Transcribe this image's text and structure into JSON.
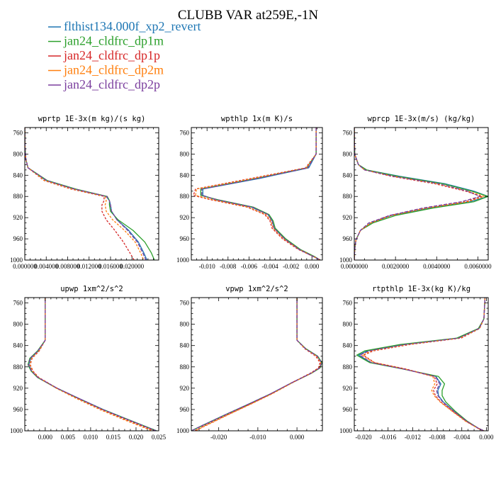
{
  "figure": {
    "title": "CLUBB VAR at259E,-1N"
  },
  "legend": [
    {
      "name": "flthist134.000f_xp2_revert",
      "color": "#1f77b4",
      "dash": "solid"
    },
    {
      "name": "jan24_cldfrc_dp1m",
      "color": "#2ca02c",
      "dash": "solid"
    },
    {
      "name": "jan24_cldfrc_dp1p",
      "color": "#d62728",
      "dash": "solid"
    },
    {
      "name": "jan24_cldfrc_dp2m",
      "color": "#ff7f0e",
      "dash": "solid"
    },
    {
      "name": "jan24_cldfrc_dp2p",
      "color": "#7b3f9e",
      "dash": "solid"
    }
  ],
  "chart_data": [
    {
      "type": "line",
      "title": "wprtp  1E-3x(m kg)/(s kg)",
      "xlim": [
        0,
        0.025
      ],
      "ylim": [
        750,
        1000
      ],
      "y_inverted": true,
      "yticks": [
        760,
        800,
        840,
        880,
        920,
        960,
        1000
      ],
      "xticks": [
        0.0,
        0.004,
        0.008,
        0.012,
        0.016,
        0.02
      ],
      "xtick_labels": [
        "0.000000",
        "0.004000",
        "0.008000",
        "0.012000",
        "0.016000",
        "0.020000"
      ],
      "y": [
        750,
        790,
        810,
        826,
        850,
        866,
        880,
        888,
        896,
        908,
        924,
        944,
        966,
        986,
        1000
      ],
      "series": [
        {
          "name": "flthist134.000f_xp2_revert",
          "x": [
            0,
            5e-05,
            0.0002,
            0.0006,
            0.004,
            0.0092,
            0.0152,
            0.0158,
            0.016,
            0.0162,
            0.0172,
            0.0194,
            0.0212,
            0.0222,
            0.0228
          ]
        },
        {
          "name": "jan24_cldfrc_dp1m",
          "x": [
            0,
            5e-05,
            0.0002,
            0.0006,
            0.0042,
            0.0095,
            0.0154,
            0.0158,
            0.0158,
            0.016,
            0.0174,
            0.0202,
            0.0224,
            0.0236,
            0.0242
          ]
        },
        {
          "name": "jan24_cldfrc_dp1p",
          "x": [
            0,
            5e-05,
            0.0002,
            0.0006,
            0.0036,
            0.0086,
            0.0148,
            0.0148,
            0.0144,
            0.0144,
            0.0152,
            0.0168,
            0.0184,
            0.0196,
            0.0204
          ]
        },
        {
          "name": "jan24_cldfrc_dp2m",
          "x": [
            0,
            5e-05,
            0.0002,
            0.0006,
            0.0037,
            0.0088,
            0.015,
            0.0152,
            0.015,
            0.0152,
            0.0164,
            0.0186,
            0.0206,
            0.0216,
            0.0222
          ]
        },
        {
          "name": "jan24_cldfrc_dp2p",
          "x": [
            0,
            5e-05,
            0.0002,
            0.0006,
            0.0041,
            0.0093,
            0.0153,
            0.0158,
            0.016,
            0.0162,
            0.0172,
            0.0192,
            0.021,
            0.022,
            0.0226
          ]
        }
      ]
    },
    {
      "type": "line",
      "title": "wpthlp  1x(m K)/s",
      "xlim": [
        -0.0115,
        0.001
      ],
      "ylim": [
        750,
        1000
      ],
      "y_inverted": true,
      "yticks": [
        760,
        800,
        840,
        880,
        920,
        960,
        1000
      ],
      "xticks": [
        -0.01,
        -0.008,
        -0.006,
        -0.004,
        -0.002,
        0.0
      ],
      "xtick_labels": [
        "-0.010",
        "-0.008",
        "-0.006",
        "-0.004",
        "-0.002",
        "0.000"
      ],
      "y": [
        750,
        800,
        826,
        846,
        866,
        878,
        886,
        900,
        914,
        926,
        940,
        960,
        980,
        994,
        1000
      ],
      "series": [
        {
          "name": "flthist134.000f_xp2_revert",
          "x": [
            0.0004,
            0.0004,
            -0.0003,
            -0.005,
            -0.0104,
            -0.0104,
            -0.0092,
            -0.0058,
            -0.0042,
            -0.0038,
            -0.0036,
            -0.0026,
            -0.0012,
            0.0002,
            0.0008
          ]
        },
        {
          "name": "jan24_cldfrc_dp1m",
          "x": [
            0.0004,
            0.0004,
            -0.0005,
            -0.0053,
            -0.0106,
            -0.0106,
            -0.009,
            -0.0056,
            -0.0041,
            -0.0037,
            -0.0035,
            -0.0025,
            -0.0011,
            0.0003,
            0.0008
          ]
        },
        {
          "name": "jan24_cldfrc_dp1p",
          "x": [
            0.0004,
            0.0004,
            -0.0006,
            -0.0058,
            -0.0111,
            -0.0113,
            -0.0097,
            -0.0062,
            -0.0045,
            -0.004,
            -0.0038,
            -0.0028,
            -0.0013,
            0.0002,
            0.0008
          ]
        },
        {
          "name": "jan24_cldfrc_dp2m",
          "x": [
            0.0004,
            0.0004,
            -0.0005,
            -0.0056,
            -0.011,
            -0.0111,
            -0.0095,
            -0.0061,
            -0.0044,
            -0.0039,
            -0.0037,
            -0.0027,
            -0.0012,
            0.0002,
            0.0008
          ]
        },
        {
          "name": "jan24_cldfrc_dp2p",
          "x": [
            0.0004,
            0.0004,
            -0.0004,
            -0.0052,
            -0.0105,
            -0.0105,
            -0.0091,
            -0.0057,
            -0.0042,
            -0.0038,
            -0.0036,
            -0.0026,
            -0.0012,
            0.0002,
            0.0008
          ]
        }
      ]
    },
    {
      "type": "line",
      "title": "wprcp  1E-3x(m/s) (kg/kg)",
      "xlim": [
        0,
        0.0065
      ],
      "ylim": [
        750,
        1000
      ],
      "y_inverted": true,
      "yticks": [
        760,
        800,
        840,
        880,
        920,
        960,
        1000
      ],
      "xticks": [
        0.0,
        0.002,
        0.004,
        0.006
      ],
      "xtick_labels": [
        "0.0000000",
        "0.0020000",
        "0.0040000",
        "0.0060000"
      ],
      "y": [
        750,
        800,
        820,
        830,
        842,
        856,
        870,
        880,
        890,
        902,
        916,
        930,
        944,
        962,
        980,
        1000
      ],
      "series": [
        {
          "name": "flthist134.000f_xp2_revert",
          "x": [
            0,
            2e-05,
            0.0002,
            0.0006,
            0.0022,
            0.0044,
            0.0058,
            0.0065,
            0.0056,
            0.0036,
            0.0018,
            0.0008,
            0.0003,
            8e-05,
            2e-05,
            0
          ]
        },
        {
          "name": "jan24_cldfrc_dp1m",
          "x": [
            0,
            2e-05,
            0.0002,
            0.0006,
            0.0021,
            0.0043,
            0.0057,
            0.0065,
            0.0058,
            0.0038,
            0.002,
            0.0009,
            0.0003,
            8e-05,
            2e-05,
            0
          ]
        },
        {
          "name": "jan24_cldfrc_dp1p",
          "x": [
            0,
            2e-05,
            0.0002,
            0.0005,
            0.0018,
            0.0039,
            0.0054,
            0.0062,
            0.0054,
            0.0035,
            0.0017,
            0.0008,
            0.0003,
            8e-05,
            2e-05,
            0
          ]
        },
        {
          "name": "jan24_cldfrc_dp2m",
          "x": [
            0,
            2e-05,
            0.0002,
            0.0005,
            0.0019,
            0.004,
            0.0055,
            0.0063,
            0.0055,
            0.0035,
            0.0018,
            0.0008,
            0.0003,
            8e-05,
            2e-05,
            0
          ]
        },
        {
          "name": "jan24_cldfrc_dp2p",
          "x": [
            0,
            2e-05,
            0.0002,
            0.0005,
            0.0019,
            0.0041,
            0.0055,
            0.0061,
            0.0052,
            0.0033,
            0.0017,
            0.0007,
            0.0003,
            8e-05,
            2e-05,
            0
          ]
        }
      ]
    },
    {
      "type": "line",
      "title": "upwp  1xm^2/s^2",
      "xlim": [
        -0.0045,
        0.025
      ],
      "ylim": [
        750,
        1000
      ],
      "y_inverted": true,
      "yticks": [
        760,
        800,
        840,
        880,
        920,
        960,
        1000
      ],
      "xticks": [
        0.0,
        0.005,
        0.01,
        0.015,
        0.02,
        0.025
      ],
      "xtick_labels": [
        "0.000",
        "0.005",
        "0.010",
        "0.015",
        "0.020",
        "0.025"
      ],
      "y": [
        745,
        830,
        850,
        864,
        876,
        888,
        900,
        920,
        940,
        960,
        980,
        1000
      ],
      "series": [
        {
          "name": "flthist134.000f_xp2_revert",
          "x": [
            0.0,
            0.0,
            -0.0015,
            -0.0032,
            -0.0036,
            -0.003,
            -0.0016,
            0.0026,
            0.0076,
            0.0128,
            0.0186,
            0.0245
          ]
        },
        {
          "name": "jan24_cldfrc_dp1m",
          "x": [
            0.0,
            0.0,
            -0.0017,
            -0.0034,
            -0.0038,
            -0.0031,
            -0.0017,
            0.0025,
            0.0075,
            0.0127,
            0.0186,
            0.0245
          ]
        },
        {
          "name": "jan24_cldfrc_dp1p",
          "x": [
            0.0,
            0.0,
            -0.0013,
            -0.0029,
            -0.0033,
            -0.0027,
            -0.0014,
            0.0026,
            0.0074,
            0.0124,
            0.018,
            0.024
          ]
        },
        {
          "name": "jan24_cldfrc_dp2m",
          "x": [
            0.0,
            0.0,
            -0.0014,
            -0.003,
            -0.0034,
            -0.0028,
            -0.0015,
            0.0024,
            0.007,
            0.012,
            0.0176,
            0.0236
          ]
        },
        {
          "name": "jan24_cldfrc_dp2p",
          "x": [
            0.0,
            0.0,
            -0.0016,
            -0.0033,
            -0.0037,
            -0.003,
            -0.0016,
            0.0026,
            0.0076,
            0.0127,
            0.0185,
            0.0244
          ]
        }
      ]
    },
    {
      "type": "line",
      "title": "vpwp  1xm^2/s^2",
      "xlim": [
        -0.027,
        0.0065
      ],
      "ylim": [
        750,
        1000
      ],
      "y_inverted": true,
      "yticks": [
        760,
        800,
        840,
        880,
        920,
        960,
        1000
      ],
      "xticks": [
        -0.02,
        -0.01,
        0.0
      ],
      "xtick_labels": [
        "-0.020",
        "-0.010",
        "0.000"
      ],
      "y": [
        745,
        830,
        846,
        860,
        872,
        882,
        892,
        910,
        930,
        950,
        970,
        990,
        1000
      ],
      "series": [
        {
          "name": "flthist134.000f_xp2_revert",
          "x": [
            0.0,
            0.0,
            0.0022,
            0.0052,
            0.0063,
            0.0058,
            0.0036,
            -0.0014,
            -0.0066,
            -0.0124,
            -0.0184,
            -0.0242,
            -0.027
          ]
        },
        {
          "name": "jan24_cldfrc_dp1m",
          "x": [
            0.0,
            0.0,
            0.0023,
            0.0053,
            0.0064,
            0.0059,
            0.0037,
            -0.0013,
            -0.0065,
            -0.0123,
            -0.0183,
            -0.0241,
            -0.027
          ]
        },
        {
          "name": "jan24_cldfrc_dp1p",
          "x": [
            0.0,
            0.0,
            0.002,
            0.0048,
            0.0059,
            0.0055,
            0.0034,
            -0.0014,
            -0.0064,
            -0.012,
            -0.0178,
            -0.0235,
            -0.0262
          ]
        },
        {
          "name": "jan24_cldfrc_dp2m",
          "x": [
            0.0,
            0.0,
            0.0021,
            0.005,
            0.0061,
            0.0057,
            0.0036,
            -0.0012,
            -0.0062,
            -0.0118,
            -0.0176,
            -0.0232,
            -0.026
          ]
        },
        {
          "name": "jan24_cldfrc_dp2p",
          "x": [
            0.0,
            0.0,
            0.0022,
            0.0052,
            0.0063,
            0.0058,
            0.0036,
            -0.0014,
            -0.0066,
            -0.0124,
            -0.0184,
            -0.0242,
            -0.027
          ]
        }
      ]
    },
    {
      "type": "line",
      "title": "rtpthlp  1E-3x(kg K)/kg",
      "xlim": [
        -0.0215,
        0.0003
      ],
      "ylim": [
        750,
        1000
      ],
      "y_inverted": true,
      "yticks": [
        760,
        800,
        840,
        880,
        920,
        960,
        1000
      ],
      "xticks": [
        -0.02,
        -0.016,
        -0.012,
        -0.008,
        -0.004,
        0.0
      ],
      "xtick_labels": [
        "-0.020",
        "-0.016",
        "-0.012",
        "-0.008",
        "-0.004",
        "0.000"
      ],
      "y": [
        745,
        790,
        808,
        826,
        838,
        850,
        858,
        872,
        884,
        898,
        912,
        924,
        934,
        946,
        964,
        982,
        996,
        1000
      ],
      "series": [
        {
          "name": "flthist134.000f_xp2_revert",
          "x": [
            -0.0002,
            -0.0004,
            -0.0012,
            -0.0046,
            -0.0135,
            -0.0194,
            -0.0208,
            -0.0188,
            -0.0135,
            -0.0082,
            -0.0074,
            -0.0079,
            -0.0078,
            -0.007,
            -0.0052,
            -0.0032,
            -0.0012,
            -0.0004
          ]
        },
        {
          "name": "jan24_cldfrc_dp1m",
          "x": [
            -0.0002,
            -0.0004,
            -0.0013,
            -0.0048,
            -0.014,
            -0.0198,
            -0.0211,
            -0.019,
            -0.0136,
            -0.0078,
            -0.0068,
            -0.0072,
            -0.0072,
            -0.0066,
            -0.005,
            -0.0031,
            -0.0012,
            -0.0004
          ]
        },
        {
          "name": "jan24_cldfrc_dp1p",
          "x": [
            -0.0002,
            -0.0004,
            -0.0011,
            -0.0041,
            -0.0124,
            -0.0184,
            -0.02,
            -0.0182,
            -0.0131,
            -0.0085,
            -0.008,
            -0.0086,
            -0.0083,
            -0.0074,
            -0.0054,
            -0.0033,
            -0.0012,
            -0.0004
          ]
        },
        {
          "name": "jan24_cldfrc_dp2m",
          "x": [
            -0.0002,
            -0.0004,
            -0.0011,
            -0.0043,
            -0.0127,
            -0.0187,
            -0.0202,
            -0.0183,
            -0.0133,
            -0.0087,
            -0.0084,
            -0.0089,
            -0.0085,
            -0.0075,
            -0.0055,
            -0.0034,
            -0.0013,
            -0.0004
          ]
        },
        {
          "name": "jan24_cldfrc_dp2p",
          "x": [
            -0.0002,
            -0.0004,
            -0.0012,
            -0.0045,
            -0.0132,
            -0.0191,
            -0.0206,
            -0.0187,
            -0.0135,
            -0.0083,
            -0.0076,
            -0.0081,
            -0.0079,
            -0.0071,
            -0.0052,
            -0.0032,
            -0.0012,
            -0.0004
          ]
        }
      ]
    }
  ]
}
